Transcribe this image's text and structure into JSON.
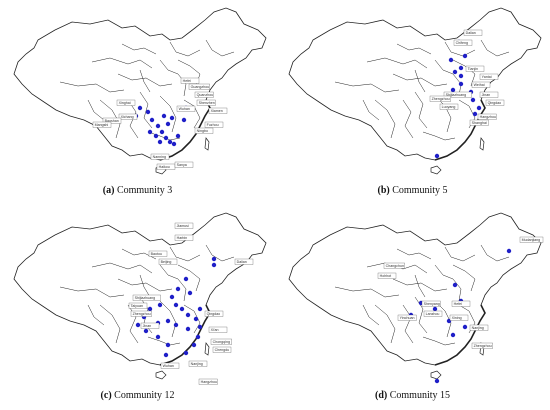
{
  "figure": {
    "panels": [
      {
        "id": "a",
        "letter": "(a)",
        "title": "Community 3",
        "cities": [
          "Xinghai",
          "Xichang",
          "Baoshan",
          "Mangshi",
          "Tengchong",
          "Guangzhou",
          "Shenzhen",
          "Xiamen",
          "Fuzhou",
          "Quanzhou",
          "Shantou",
          "Nanning",
          "Haikou",
          "Sanya",
          "Zhuhai",
          "Guilin",
          "Changsha",
          "Wuhan",
          "Hefei",
          "Ningbo",
          "Wenzhou",
          "Nanchang",
          "Ganzhou",
          "Jieyang",
          "Meixian",
          "Zhanjiang",
          "Beihai"
        ]
      },
      {
        "id": "b",
        "letter": "(b)",
        "title": "Community 5",
        "cities": [
          "Dalian",
          "Chifeng",
          "Tianjin",
          "Yantai",
          "Weihai",
          "Shijiazhuang",
          "Jinan",
          "Qingdao",
          "Zhengzhou",
          "Luoyang",
          "Xi'an",
          "Hangzhou",
          "Shanghai",
          "Shenzhen"
        ]
      },
      {
        "id": "c",
        "letter": "(c)",
        "title": "Community 12",
        "cities": [
          "Jiamusi",
          "Harbin",
          "Baotou",
          "Beijing",
          "Dalian",
          "Shijiazhuang",
          "Taiyuan",
          "Zhengzhou",
          "Jinan",
          "Qingdao",
          "Xi'an",
          "Chongqing",
          "Chengdu",
          "Wuhan",
          "Nanjing",
          "Hangzhou",
          "Shanghai",
          "Changsha",
          "Nanchang",
          "Guiyang",
          "Kunming",
          "Fuzhou",
          "Xiamen",
          "Guangzhou",
          "Haikou",
          "Wenzhou",
          "Yiwu",
          "Zhangzhou",
          "Nanning"
        ]
      },
      {
        "id": "d",
        "letter": "(d)",
        "title": "Community 15",
        "cities": [
          "Mudanjiang",
          "Changchun",
          "Hohhot",
          "Shenyang",
          "Lanzhou",
          "Yinchuan",
          "Xining",
          "Zhengzhou",
          "Hefei",
          "Nanjing",
          "Shanghai",
          "Wuxi",
          "Shenzhen",
          "Sanya"
        ]
      }
    ]
  },
  "colors": {
    "node": "#1f1fc8",
    "border": "#222222",
    "label_box": "#ffffff",
    "label_stroke": "#444444"
  }
}
